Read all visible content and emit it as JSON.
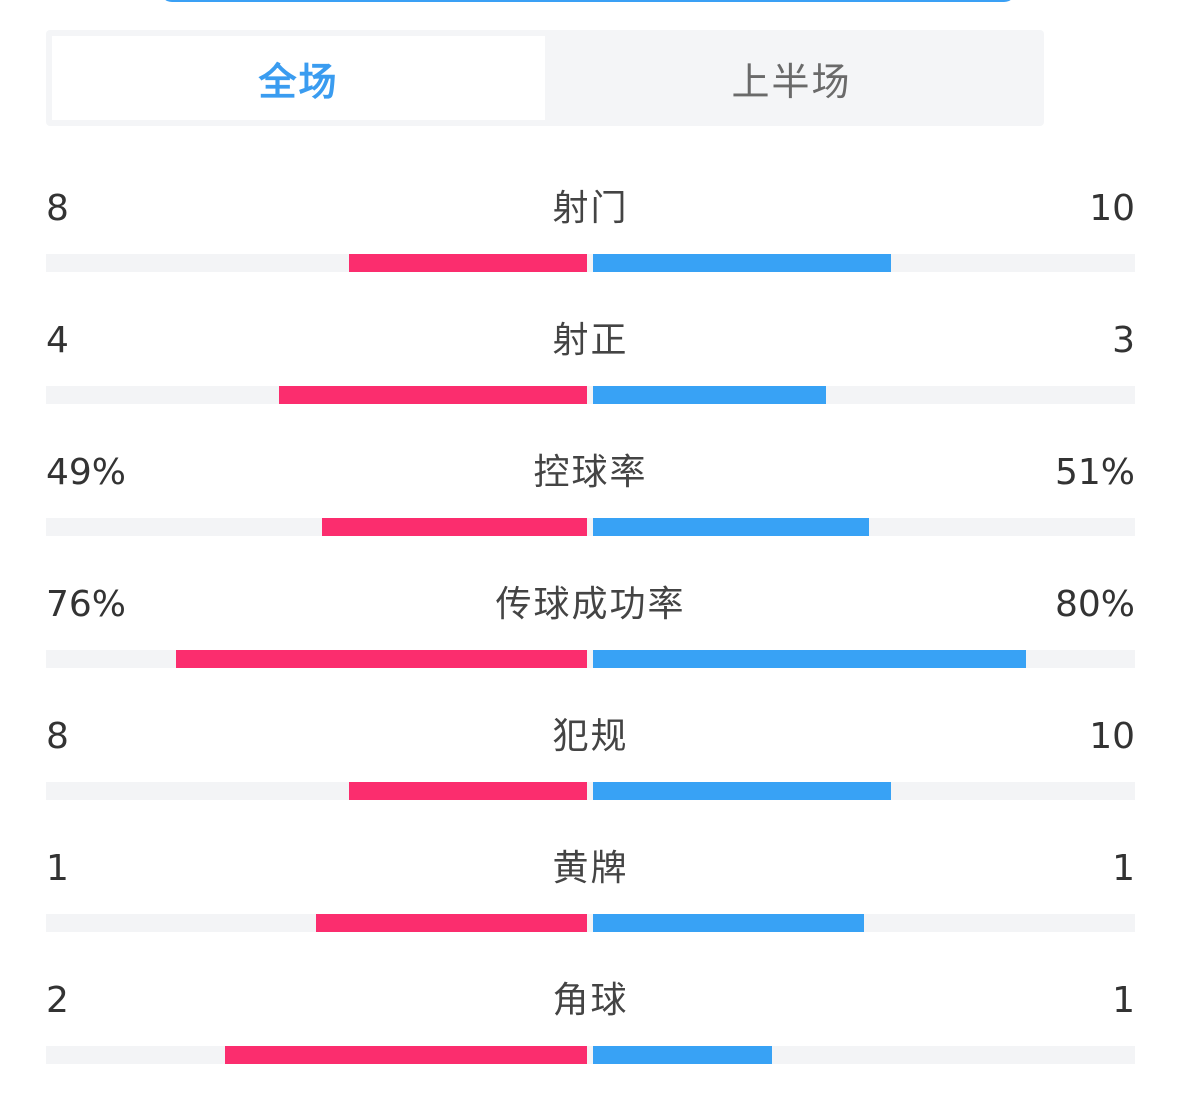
{
  "tabs": [
    {
      "label": "全场",
      "active": true
    },
    {
      "label": "上半场",
      "active": false
    }
  ],
  "colors": {
    "home": "#fb2d6e",
    "away": "#38a2f5",
    "track": "#f3f4f6",
    "active_tab": "#3a9cf0"
  },
  "stats": [
    {
      "label": "射门",
      "home": "8",
      "away": "10",
      "home_fill": 0.44,
      "away_fill": 0.55
    },
    {
      "label": "射正",
      "home": "4",
      "away": "3",
      "home_fill": 0.57,
      "away_fill": 0.43
    },
    {
      "label": "控球率",
      "home": "49%",
      "away": "51%",
      "home_fill": 0.49,
      "away_fill": 0.51
    },
    {
      "label": "传球成功率",
      "home": "76%",
      "away": "80%",
      "home_fill": 0.76,
      "away_fill": 0.8
    },
    {
      "label": "犯规",
      "home": "8",
      "away": "10",
      "home_fill": 0.44,
      "away_fill": 0.55
    },
    {
      "label": "黄牌",
      "home": "1",
      "away": "1",
      "home_fill": 0.5,
      "away_fill": 0.5
    },
    {
      "label": "角球",
      "home": "2",
      "away": "1",
      "home_fill": 0.67,
      "away_fill": 0.33
    }
  ]
}
